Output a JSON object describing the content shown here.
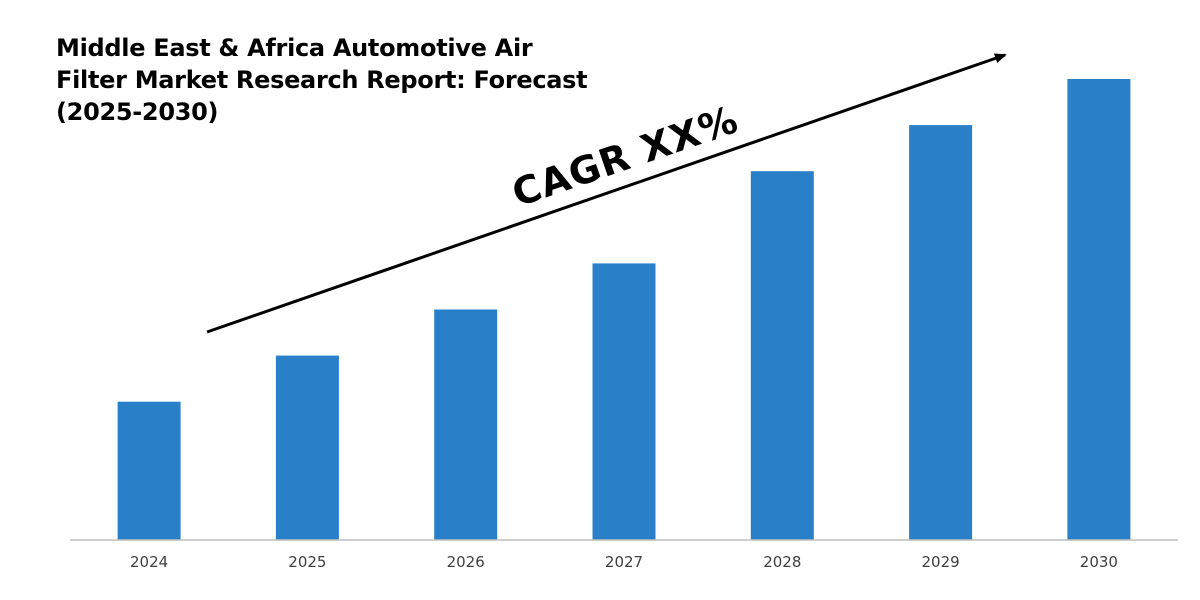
{
  "chart_data": {
    "type": "bar",
    "title": "Middle East & Africa Automotive Air\nFilter Market Research Report: Forecast\n(2025-2030)",
    "categories": [
      "2024",
      "2025",
      "2026",
      "2027",
      "2028",
      "2029",
      "2030"
    ],
    "values": [
      30,
      40,
      50,
      60,
      80,
      90,
      100
    ],
    "ylim": [
      0,
      100
    ],
    "bar_color": "#2a7fc9",
    "axis_color": "#bfbfbf",
    "grid": false,
    "annotation": {
      "text": "CAGR XX%",
      "arrow_color": "#000000"
    }
  }
}
